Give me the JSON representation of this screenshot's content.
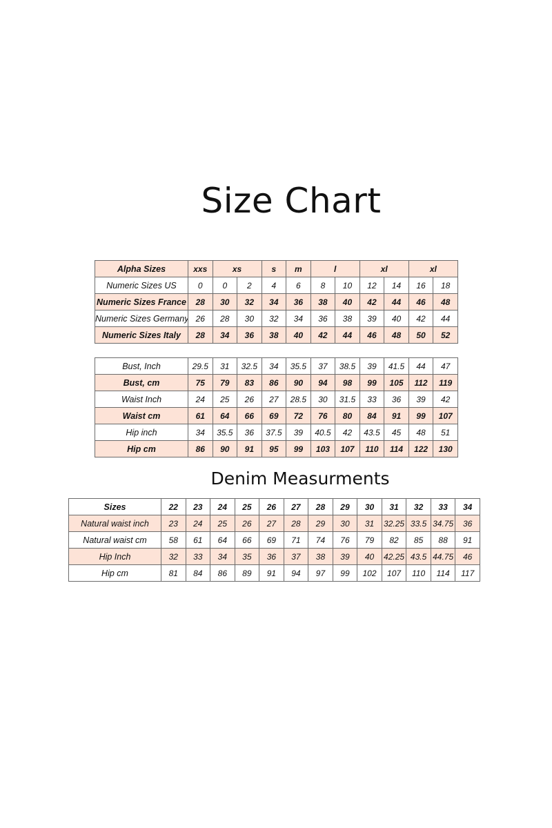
{
  "title": "Size Chart",
  "denim_title": "Denim Measurments",
  "colors": {
    "highlight_row": "#fde3d7",
    "border": "#6a6a6a"
  },
  "size_conversion": {
    "header": {
      "label": "Alpha Sizes",
      "cells": [
        {
          "text": "xxs",
          "span": 1
        },
        {
          "text": "xs",
          "span": 2
        },
        {
          "text": "s",
          "span": 1
        },
        {
          "text": "m",
          "span": 1
        },
        {
          "text": "l",
          "span": 2
        },
        {
          "text": "xl",
          "span": 2
        },
        {
          "text": "xl",
          "span": 2
        }
      ]
    },
    "rows": [
      {
        "label": "Numeric Sizes US",
        "values": [
          "0",
          "0",
          "2",
          "4",
          "6",
          "8",
          "10",
          "12",
          "14",
          "16",
          "18"
        ]
      },
      {
        "label": "Numeric Sizes France",
        "values": [
          "28",
          "30",
          "32",
          "34",
          "36",
          "38",
          "40",
          "42",
          "44",
          "46",
          "48"
        ]
      },
      {
        "label": "Numeric Sizes Germany",
        "values": [
          "26",
          "28",
          "30",
          "32",
          "34",
          "36",
          "38",
          "39",
          "40",
          "42",
          "44"
        ]
      },
      {
        "label": "Numeric Sizes Italy",
        "values": [
          "28",
          "34",
          "36",
          "38",
          "40",
          "42",
          "44",
          "46",
          "48",
          "50",
          "52"
        ]
      }
    ]
  },
  "body_measurements": {
    "rows": [
      {
        "label": "Bust, Inch",
        "values": [
          "29.5",
          "31",
          "32.5",
          "34",
          "35.5",
          "37",
          "38.5",
          "39",
          "41.5",
          "44",
          "47"
        ]
      },
      {
        "label": "Bust, cm",
        "values": [
          "75",
          "79",
          "83",
          "86",
          "90",
          "94",
          "98",
          "99",
          "105",
          "112",
          "119"
        ]
      },
      {
        "label": "Waist Inch",
        "values": [
          "24",
          "25",
          "26",
          "27",
          "28.5",
          "30",
          "31.5",
          "33",
          "36",
          "39",
          "42"
        ]
      },
      {
        "label": "Waist cm",
        "values": [
          "61",
          "64",
          "66",
          "69",
          "72",
          "76",
          "80",
          "84",
          "91",
          "99",
          "107"
        ]
      },
      {
        "label": "Hip inch",
        "values": [
          "34",
          "35.5",
          "36",
          "37.5",
          "39",
          "40.5",
          "42",
          "43.5",
          "45",
          "48",
          "51"
        ]
      },
      {
        "label": "Hip cm",
        "values": [
          "86",
          "90",
          "91",
          "95",
          "99",
          "103",
          "107",
          "110",
          "114",
          "122",
          "130"
        ]
      }
    ]
  },
  "denim": {
    "header": {
      "label": "Sizes",
      "values": [
        "22",
        "23",
        "24",
        "25",
        "26",
        "27",
        "28",
        "29",
        "30",
        "31",
        "32",
        "33",
        "34"
      ]
    },
    "rows": [
      {
        "label": "Natural waist inch",
        "values": [
          "23",
          "24",
          "25",
          "26",
          "27",
          "28",
          "29",
          "30",
          "31",
          "32.25",
          "33.5",
          "34.75",
          "36"
        ]
      },
      {
        "label": "Natural waist cm",
        "values": [
          "58",
          "61",
          "64",
          "66",
          "69",
          "71",
          "74",
          "76",
          "79",
          "82",
          "85",
          "88",
          "91"
        ]
      },
      {
        "label": "Hip Inch",
        "values": [
          "32",
          "33",
          "34",
          "35",
          "36",
          "37",
          "38",
          "39",
          "40",
          "42.25",
          "43.5",
          "44.75",
          "46"
        ]
      },
      {
        "label": "Hip cm",
        "values": [
          "81",
          "84",
          "86",
          "89",
          "91",
          "94",
          "97",
          "99",
          "102",
          "107",
          "110",
          "114",
          "117"
        ]
      }
    ]
  }
}
